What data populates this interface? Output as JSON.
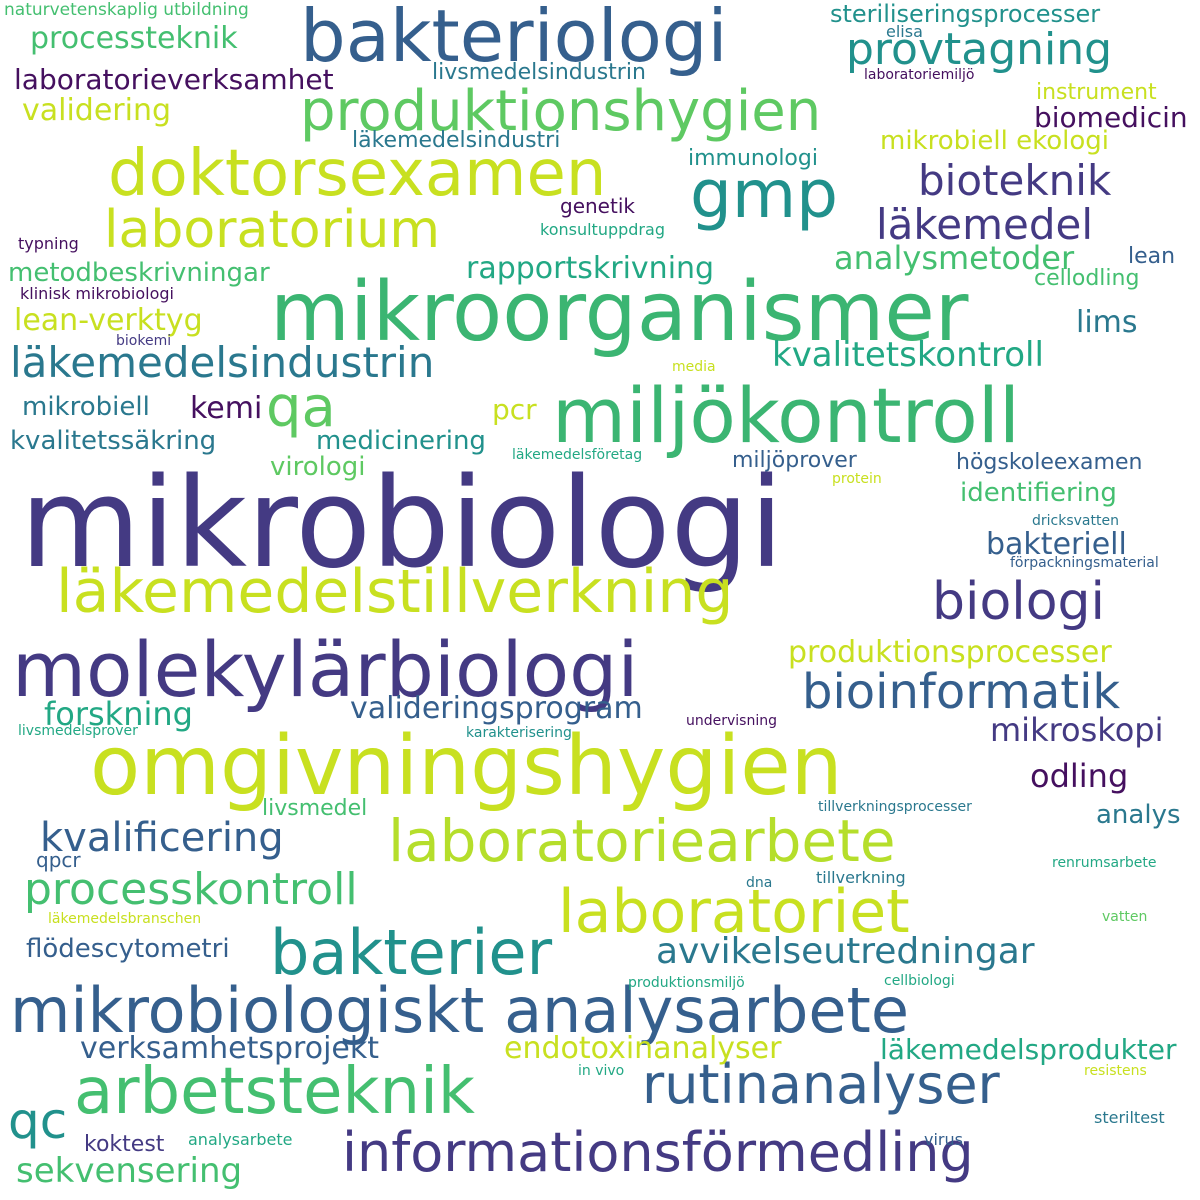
{
  "palette": {
    "dark_purple": "#45105f",
    "indigo": "#443a83",
    "blue": "#355f8d",
    "steel": "#2a788e",
    "teal": "#21918c",
    "green_teal": "#22a884",
    "green": "#44bf70",
    "light_green": "#7ad151",
    "lime": "#c8e020"
  },
  "words": [
    {
      "text": "mikrobiologi",
      "color": "#443a83"
    },
    {
      "text": "mikroorganismer",
      "color": "#3bb572"
    },
    {
      "text": "bakteriologi",
      "color": "#355f8d"
    },
    {
      "text": "omgivningshygien",
      "color": "#c8e020"
    },
    {
      "text": "molekylärbiologi",
      "color": "#443a83"
    },
    {
      "text": "miljökontroll",
      "color": "#3bb572"
    },
    {
      "text": "mikrobiologiskt analysarbete",
      "color": "#355f8d"
    },
    {
      "text": "läkemedelstillverkning",
      "color": "#c8e020"
    },
    {
      "text": "doktorsexamen",
      "color": "#c8e020"
    },
    {
      "text": "arbetsteknik",
      "color": "#44bf70"
    },
    {
      "text": "laboratoriearbete",
      "color": "#b5de2b"
    },
    {
      "text": "produktionshygien",
      "color": "#5ec962"
    },
    {
      "text": "laboratoriet",
      "color": "#c8e020"
    },
    {
      "text": "bakterier",
      "color": "#21918c"
    },
    {
      "text": "rutinanalyser",
      "color": "#355f8d"
    },
    {
      "text": "informationsförmedling",
      "color": "#443a83"
    },
    {
      "text": "laboratorium",
      "color": "#c8e020"
    },
    {
      "text": "gmp",
      "color": "#21918c"
    },
    {
      "text": "processkontroll",
      "color": "#44bf70"
    },
    {
      "text": "biologi",
      "color": "#443a83"
    },
    {
      "text": "bioinformatik",
      "color": "#355f8d"
    },
    {
      "text": "provtagning",
      "color": "#21918c"
    },
    {
      "text": "läkemedelsindustrin",
      "color": "#2a788e"
    },
    {
      "text": "läkemedel",
      "color": "#443a83"
    },
    {
      "text": "bioteknik",
      "color": "#443a83"
    },
    {
      "text": "qa",
      "color": "#5ec962"
    },
    {
      "text": "qc",
      "color": "#21918c"
    },
    {
      "text": "kvalificering",
      "color": "#355f8d"
    },
    {
      "text": "avvikelseutredningar",
      "color": "#2a788e"
    },
    {
      "text": "kvalitetskontroll",
      "color": "#22a884"
    },
    {
      "text": "sekvensering",
      "color": "#44bf70"
    },
    {
      "text": "produktionsprocesser",
      "color": "#c8e020"
    },
    {
      "text": "verksamhetsprojekt",
      "color": "#355f8d"
    },
    {
      "text": "endotoxinanalyser",
      "color": "#c8e020"
    },
    {
      "text": "valideringsprogram",
      "color": "#355f8d"
    },
    {
      "text": "forskning",
      "color": "#22a884"
    },
    {
      "text": "läkemedelsprodukter",
      "color": "#22a884"
    },
    {
      "text": "analysmetoder",
      "color": "#44bf70"
    },
    {
      "text": "rapportskrivning",
      "color": "#22a884"
    },
    {
      "text": "processteknik",
      "color": "#44bf70"
    },
    {
      "text": "laboratorieverksamhet",
      "color": "#45105f"
    },
    {
      "text": "metodbeskrivningar",
      "color": "#44bf70"
    },
    {
      "text": "lean-verktyg",
      "color": "#c8e020"
    },
    {
      "text": "mikroskopi",
      "color": "#443a83"
    },
    {
      "text": "odling",
      "color": "#45105f"
    },
    {
      "text": "bakteriell",
      "color": "#355f8d"
    },
    {
      "text": "validering",
      "color": "#c8e020"
    },
    {
      "text": "identifiering",
      "color": "#44bf70"
    },
    {
      "text": "kvalitetssäkring",
      "color": "#2a788e"
    },
    {
      "text": "medicinering",
      "color": "#21918c"
    },
    {
      "text": "lims",
      "color": "#2a788e"
    },
    {
      "text": "biomedicin",
      "color": "#45105f"
    },
    {
      "text": "steriliseringsprocesser",
      "color": "#21918c"
    },
    {
      "text": "mikrobiell",
      "color": "#2a788e"
    },
    {
      "text": "kemi",
      "color": "#45105f"
    },
    {
      "text": "pcr",
      "color": "#c8e020"
    },
    {
      "text": "analys",
      "color": "#2a788e"
    },
    {
      "text": "mikrobiell ekologi",
      "color": "#c8e020"
    },
    {
      "text": "flödescytometri",
      "color": "#355f8d"
    },
    {
      "text": "virologi",
      "color": "#5ec962"
    },
    {
      "text": "miljöprover",
      "color": "#355f8d"
    },
    {
      "text": "högskoleexamen",
      "color": "#355f8d"
    },
    {
      "text": "livsmedelsindustrin",
      "color": "#2a788e"
    },
    {
      "text": "läkemedelsindustri",
      "color": "#2a788e"
    },
    {
      "text": "immunologi",
      "color": "#21918c"
    },
    {
      "text": "koktest",
      "color": "#443a83"
    },
    {
      "text": "instrument",
      "color": "#c8e020"
    },
    {
      "text": "livsmedel",
      "color": "#44bf70"
    },
    {
      "text": "cellodling",
      "color": "#44bf70"
    },
    {
      "text": "genetik",
      "color": "#45105f"
    },
    {
      "text": "lean",
      "color": "#355f8d"
    },
    {
      "text": "qpcr",
      "color": "#355f8d"
    },
    {
      "text": "naturvetenskaplig utbildning",
      "color": "#44bf70"
    },
    {
      "text": "elisa",
      "color": "#2a788e"
    },
    {
      "text": "laboratoriemiljö",
      "color": "#45105f"
    },
    {
      "text": "konsultuppdrag",
      "color": "#22a884"
    },
    {
      "text": "typning",
      "color": "#45105f"
    },
    {
      "text": "klinisk mikrobiologi",
      "color": "#45105f"
    },
    {
      "text": "biokemi",
      "color": "#443a83"
    },
    {
      "text": "media",
      "color": "#c8e020"
    },
    {
      "text": "läkemedelsföretag",
      "color": "#22a884"
    },
    {
      "text": "protein",
      "color": "#c8e020"
    },
    {
      "text": "dricksvatten",
      "color": "#2a788e"
    },
    {
      "text": "förpackningsmaterial",
      "color": "#355f8d"
    },
    {
      "text": "undervisning",
      "color": "#45105f"
    },
    {
      "text": "livsmedelsprover",
      "color": "#22a884"
    },
    {
      "text": "karakterisering",
      "color": "#21918c"
    },
    {
      "text": "tillverkningsprocesser",
      "color": "#2a788e"
    },
    {
      "text": "renrumsarbete",
      "color": "#22a884"
    },
    {
      "text": "dna",
      "color": "#2a788e"
    },
    {
      "text": "tillverkning",
      "color": "#2a788e"
    },
    {
      "text": "läkemedelsbranschen",
      "color": "#c8e020"
    },
    {
      "text": "vatten",
      "color": "#5ec962"
    },
    {
      "text": "produktionsmiljö",
      "color": "#22a884"
    },
    {
      "text": "cellbiologi",
      "color": "#22a884"
    },
    {
      "text": "in vivo",
      "color": "#22a884"
    },
    {
      "text": "resistens",
      "color": "#c8e020"
    },
    {
      "text": "steriltest",
      "color": "#2a788e"
    },
    {
      "text": "analysarbete",
      "color": "#22a884"
    },
    {
      "text": "virus",
      "color": "#355f8d"
    }
  ]
}
